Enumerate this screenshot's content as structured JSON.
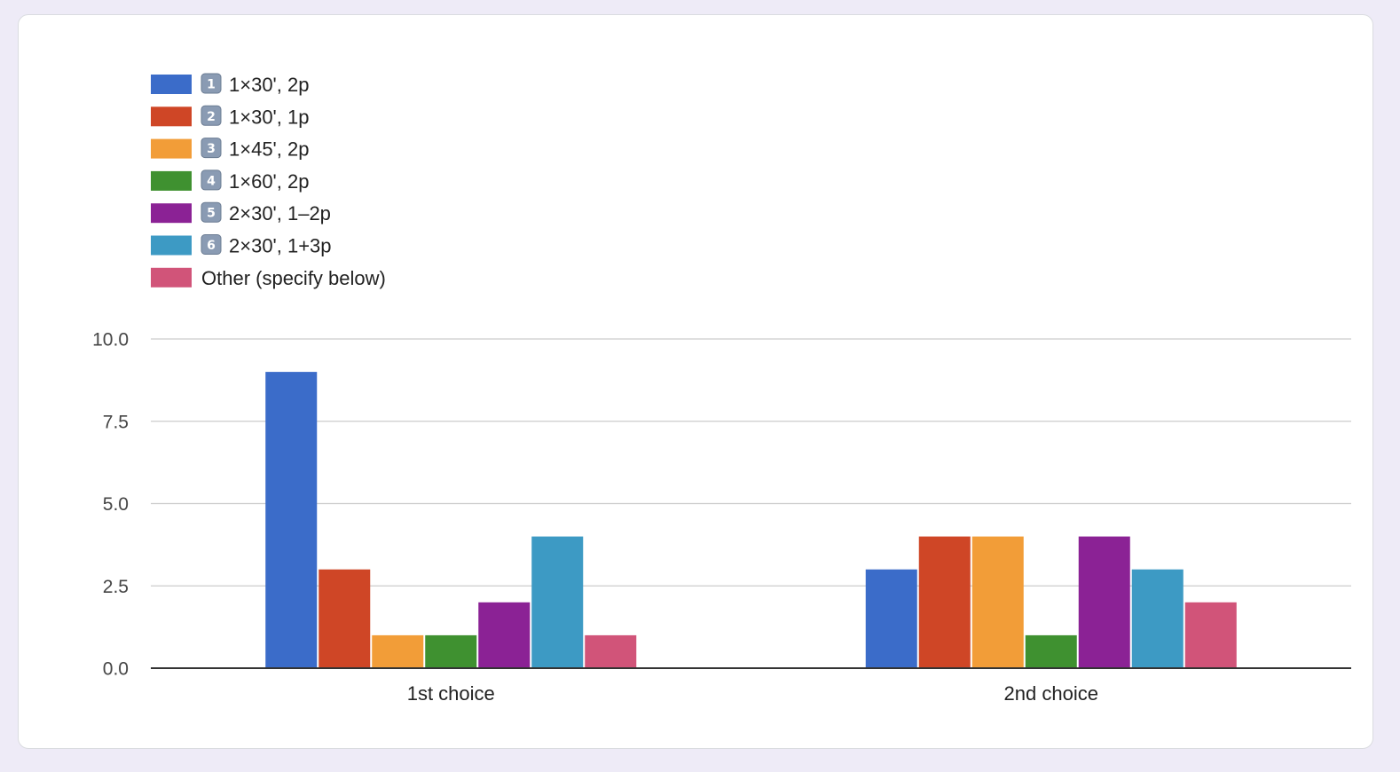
{
  "chart_data": {
    "type": "bar",
    "categories": [
      "1st choice",
      "2nd choice"
    ],
    "series": [
      {
        "name": "1×30', 2p",
        "key": "1",
        "color": "#3b6cc9",
        "values": [
          9,
          3
        ]
      },
      {
        "name": "1×30', 1p",
        "key": "2",
        "color": "#cf4626",
        "values": [
          3,
          4
        ]
      },
      {
        "name": "1×45', 2p",
        "key": "3",
        "color": "#f29d38",
        "values": [
          1,
          4
        ]
      },
      {
        "name": "1×60', 2p",
        "key": "4",
        "color": "#3f9130",
        "values": [
          1,
          1
        ]
      },
      {
        "name": "2×30', 1–2p",
        "key": "5",
        "color": "#8b2295",
        "values": [
          2,
          4
        ]
      },
      {
        "name": "2×30', 1+3p",
        "key": "6",
        "color": "#3d9ac4",
        "values": [
          4,
          3
        ]
      },
      {
        "name": "Other (specify below)",
        "key": "",
        "color": "#d15479",
        "values": [
          1,
          2
        ]
      }
    ],
    "yticks": [
      "0.0",
      "2.5",
      "5.0",
      "7.5",
      "10.0"
    ],
    "ylim": [
      0,
      10
    ],
    "grid": true,
    "legend_position": "top-left",
    "title": "",
    "xlabel": "",
    "ylabel": ""
  }
}
